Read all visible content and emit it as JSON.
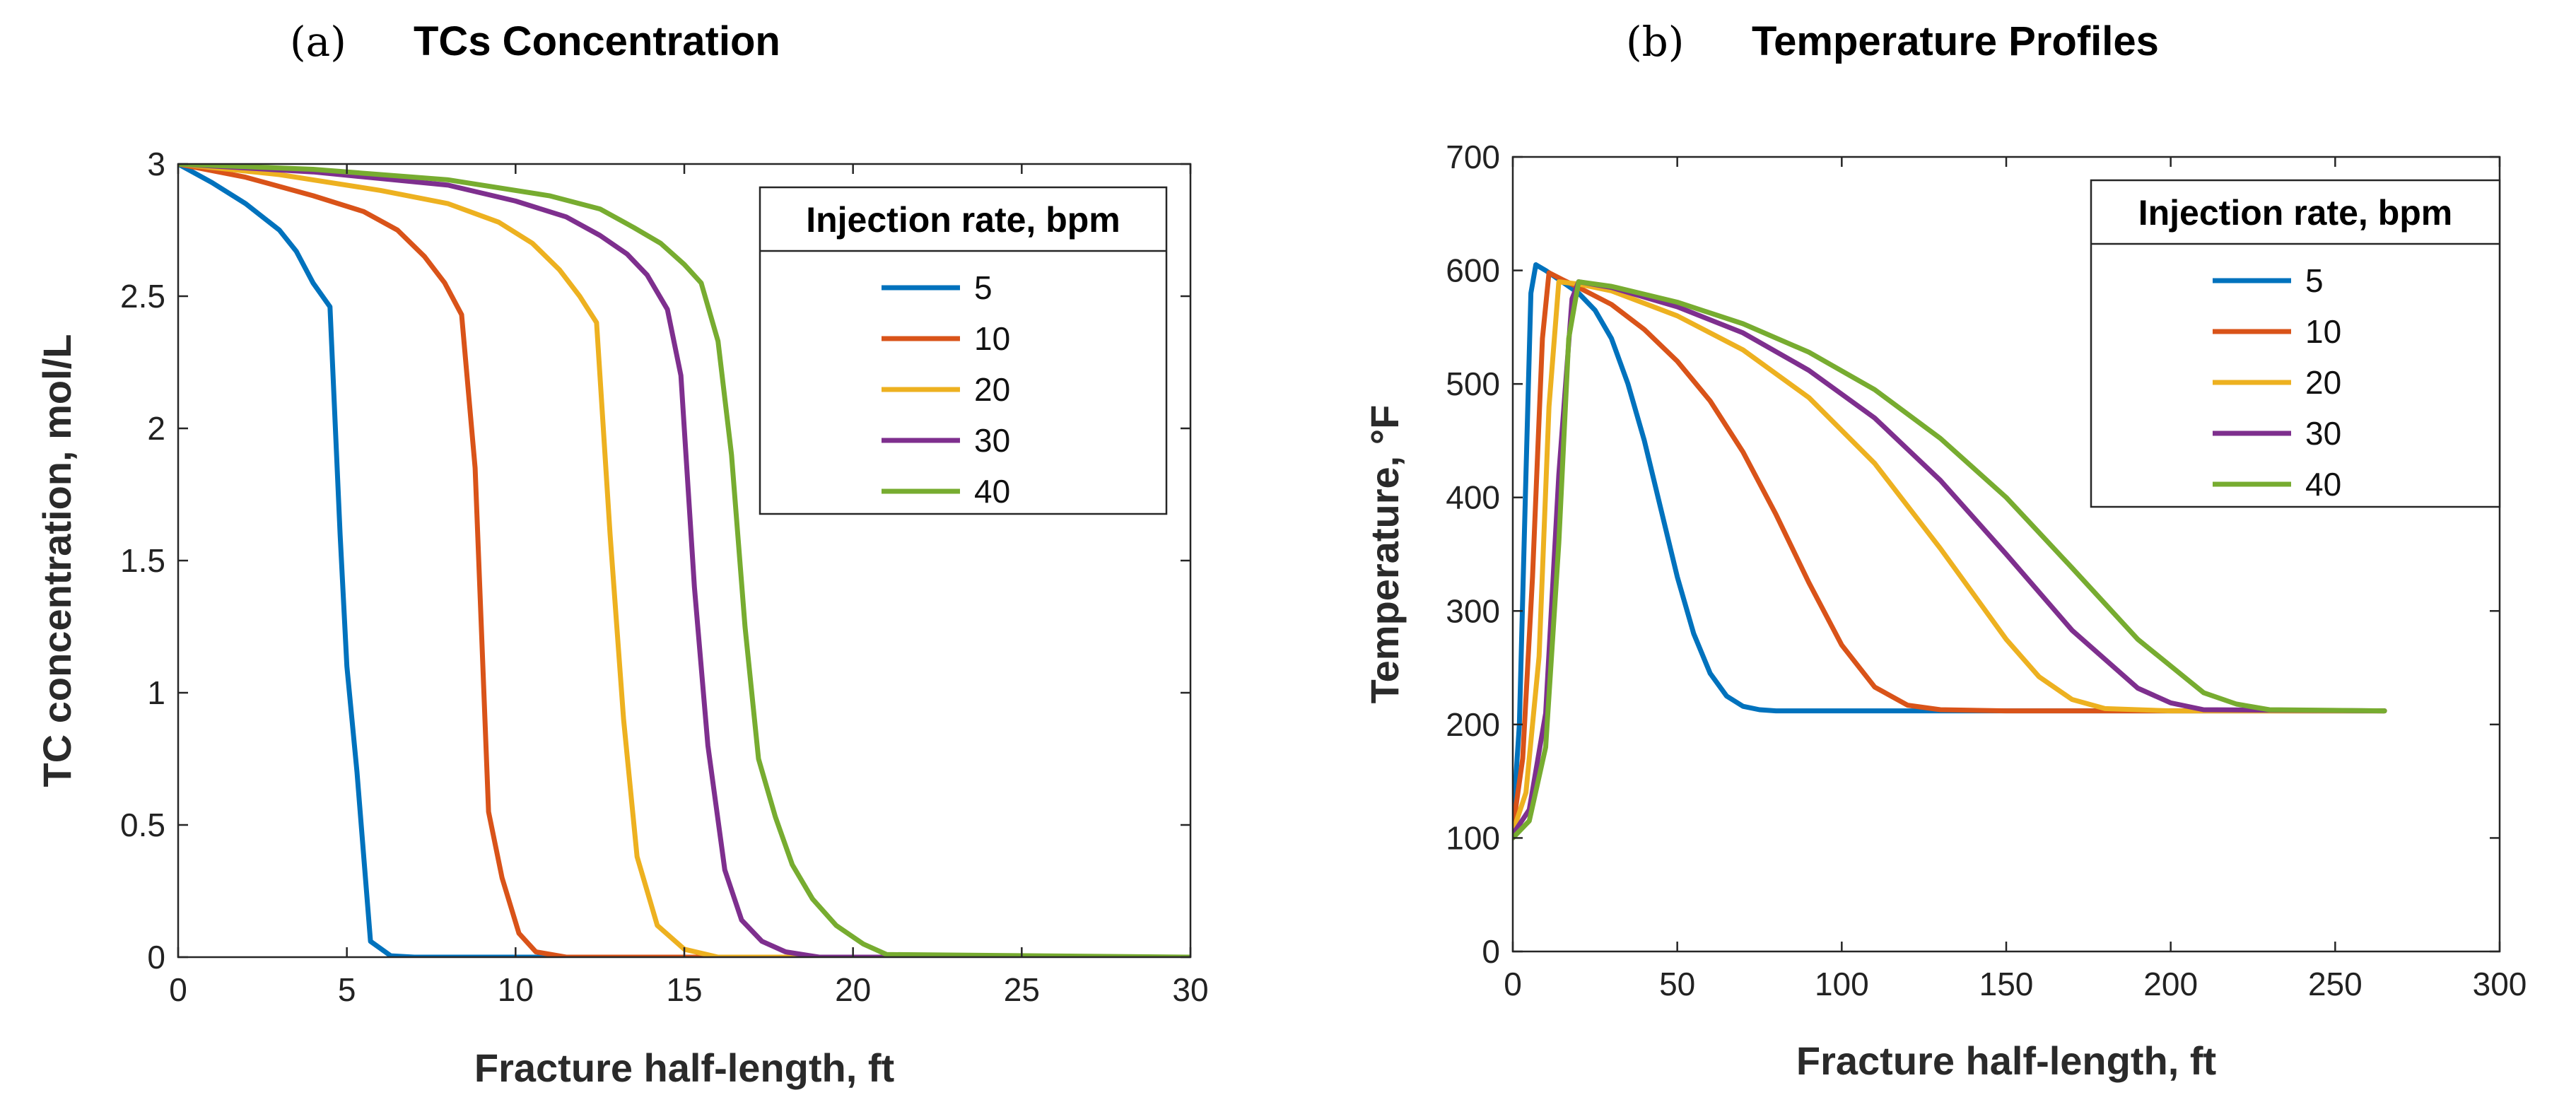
{
  "panels": [
    {
      "label": "(a)",
      "title": "TCs Concentration"
    },
    {
      "label": "(b)",
      "title": "Temperature Profiles"
    }
  ],
  "chart_data": [
    {
      "type": "line",
      "title": "TCs Concentration",
      "xlabel": "Fracture half-length, ft",
      "ylabel": "TC concentration, mol/L",
      "xlim": [
        0,
        30
      ],
      "ylim": [
        0,
        3
      ],
      "xticks": [
        0,
        5,
        10,
        15,
        20,
        25,
        30
      ],
      "yticks": [
        0,
        0.5,
        1,
        1.5,
        2,
        2.5,
        3
      ],
      "xtick_labels": [
        "0",
        "5",
        "10",
        "15",
        "20",
        "25",
        "30"
      ],
      "ytick_labels": [
        "0",
        "0.5",
        "1",
        "1.5",
        "2",
        "2.5",
        "3"
      ],
      "legend_title": "Injection rate, bpm",
      "legend_position": "top-right",
      "series": [
        {
          "name": "5",
          "color": "#0072BD",
          "x": [
            0,
            1,
            2,
            3,
            3.5,
            4,
            4.5,
            4.8,
            5,
            5.3,
            5.7,
            6.3,
            7,
            30
          ],
          "y": [
            3,
            2.93,
            2.85,
            2.75,
            2.67,
            2.55,
            2.46,
            1.6,
            1.1,
            0.7,
            0.06,
            0.005,
            0,
            0
          ]
        },
        {
          "name": "10",
          "color": "#D95319",
          "x": [
            0,
            2,
            4,
            5.5,
            6.5,
            7.3,
            7.9,
            8.4,
            8.8,
            9.2,
            9.6,
            10.1,
            10.6,
            11.5,
            30
          ],
          "y": [
            3,
            2.95,
            2.88,
            2.82,
            2.75,
            2.65,
            2.55,
            2.43,
            1.85,
            0.55,
            0.3,
            0.09,
            0.02,
            0,
            0
          ]
        },
        {
          "name": "20",
          "color": "#EDB120",
          "x": [
            0,
            3,
            6,
            8,
            9.5,
            10.5,
            11.3,
            11.9,
            12.4,
            12.8,
            13.2,
            13.6,
            14.2,
            15,
            16,
            30
          ],
          "y": [
            3,
            2.96,
            2.9,
            2.85,
            2.78,
            2.7,
            2.6,
            2.5,
            2.4,
            1.6,
            0.9,
            0.38,
            0.12,
            0.03,
            0,
            0
          ]
        },
        {
          "name": "30",
          "color": "#7E2F8E",
          "x": [
            0,
            4,
            8,
            10,
            11.5,
            12.5,
            13.3,
            13.9,
            14.5,
            14.9,
            15.3,
            15.7,
            16.2,
            16.7,
            17.3,
            18,
            19,
            30
          ],
          "y": [
            3,
            2.97,
            2.92,
            2.86,
            2.8,
            2.73,
            2.66,
            2.58,
            2.45,
            2.2,
            1.4,
            0.8,
            0.33,
            0.14,
            0.06,
            0.02,
            0,
            0
          ]
        },
        {
          "name": "40",
          "color": "#77AC30",
          "x": [
            0,
            4,
            8,
            11,
            12.5,
            13.5,
            14.3,
            15,
            15.5,
            16,
            16.4,
            16.8,
            17.2,
            17.7,
            18.2,
            18.8,
            19.5,
            20.3,
            21,
            30
          ],
          "y": [
            3,
            2.98,
            2.94,
            2.88,
            2.83,
            2.76,
            2.7,
            2.62,
            2.55,
            2.33,
            1.9,
            1.25,
            0.75,
            0.53,
            0.35,
            0.22,
            0.12,
            0.05,
            0.01,
            0
          ]
        }
      ]
    },
    {
      "type": "line",
      "title": "Temperature Profiles",
      "xlabel": "Fracture half-length, ft",
      "ylabel": "Temperature, °F",
      "xlim": [
        0,
        300
      ],
      "ylim": [
        0,
        700
      ],
      "xticks": [
        0,
        50,
        100,
        150,
        200,
        250,
        300
      ],
      "yticks": [
        0,
        100,
        200,
        300,
        400,
        500,
        600,
        700
      ],
      "xtick_labels": [
        "0",
        "50",
        "100",
        "150",
        "200",
        "250",
        "300"
      ],
      "ytick_labels": [
        "0",
        "100",
        "200",
        "300",
        "400",
        "500",
        "600",
        "700"
      ],
      "legend_title": "Injection rate, bpm",
      "legend_position": "top-right",
      "series": [
        {
          "name": "5",
          "color": "#0072BD",
          "x": [
            0,
            2,
            4,
            5.5,
            7,
            10,
            15,
            20,
            25,
            30,
            35,
            40,
            45,
            50,
            55,
            60,
            65,
            70,
            75,
            80,
            100,
            150,
            200,
            265
          ],
          "y": [
            112,
            200,
            420,
            580,
            605,
            600,
            590,
            580,
            565,
            540,
            500,
            450,
            390,
            330,
            280,
            245,
            225,
            216,
            213,
            212,
            212,
            212,
            212,
            212
          ]
        },
        {
          "name": "10",
          "color": "#D95319",
          "x": [
            0,
            3,
            6,
            9,
            11,
            15,
            20,
            30,
            40,
            50,
            60,
            70,
            80,
            90,
            100,
            110,
            120,
            130,
            150,
            200,
            265
          ],
          "y": [
            108,
            170,
            330,
            540,
            598,
            592,
            585,
            570,
            548,
            520,
            485,
            440,
            385,
            325,
            270,
            233,
            217,
            213,
            212,
            212,
            212
          ]
        },
        {
          "name": "20",
          "color": "#EDB120",
          "x": [
            0,
            4,
            8,
            11,
            14,
            20,
            30,
            50,
            70,
            90,
            110,
            130,
            150,
            160,
            170,
            180,
            200,
            265
          ],
          "y": [
            105,
            140,
            260,
            480,
            590,
            588,
            582,
            560,
            530,
            488,
            430,
            355,
            275,
            242,
            222,
            214,
            212,
            212
          ]
        },
        {
          "name": "30",
          "color": "#7E2F8E",
          "x": [
            0,
            5,
            10,
            14,
            18,
            20,
            30,
            50,
            70,
            90,
            110,
            130,
            150,
            170,
            190,
            200,
            210,
            265
          ],
          "y": [
            103,
            125,
            210,
            420,
            575,
            590,
            585,
            568,
            545,
            512,
            470,
            415,
            350,
            283,
            232,
            219,
            213,
            212
          ]
        },
        {
          "name": "40",
          "color": "#77AC30",
          "x": [
            0,
            5,
            10,
            14,
            17,
            20,
            30,
            50,
            70,
            90,
            110,
            130,
            150,
            170,
            190,
            210,
            220,
            230,
            265
          ],
          "y": [
            100,
            115,
            180,
            360,
            540,
            590,
            586,
            572,
            553,
            528,
            495,
            452,
            400,
            338,
            275,
            228,
            218,
            213,
            212
          ]
        }
      ]
    }
  ]
}
